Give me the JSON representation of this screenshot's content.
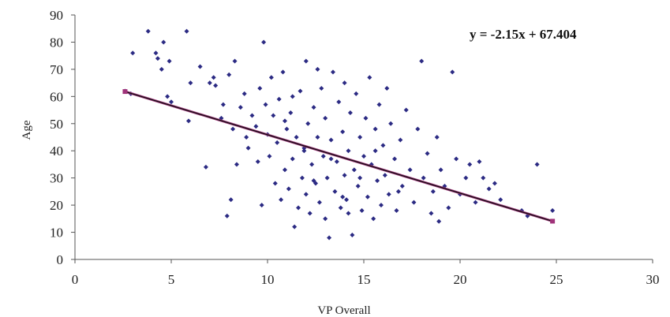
{
  "chart_data": {
    "type": "scatter",
    "xlabel": "VP Overall",
    "ylabel": "Age",
    "xlim": [
      0,
      30
    ],
    "ylim": [
      0,
      90
    ],
    "xticks": [
      0,
      5,
      10,
      15,
      20,
      25,
      30
    ],
    "yticks": [
      0,
      10,
      20,
      30,
      40,
      50,
      60,
      70,
      80,
      90
    ],
    "grid": false,
    "legend": "none",
    "annotation": "y = -2.15x + 67.404",
    "trendline": {
      "slope": -2.15,
      "intercept": 67.404,
      "x_range": [
        2.6,
        24.8
      ]
    },
    "colors": {
      "points": "#2b2a83",
      "trendline": "#101010",
      "trendline_highlight": "#a0337a",
      "axis": "#555555"
    },
    "points": [
      [
        2.6,
        62
      ],
      [
        2.9,
        61
      ],
      [
        3.0,
        76
      ],
      [
        3.8,
        84
      ],
      [
        4.2,
        76
      ],
      [
        4.3,
        74
      ],
      [
        4.5,
        70
      ],
      [
        4.6,
        80
      ],
      [
        4.8,
        60
      ],
      [
        4.9,
        73
      ],
      [
        5.0,
        58
      ],
      [
        5.8,
        84
      ],
      [
        5.9,
        51
      ],
      [
        6.0,
        65
      ],
      [
        6.5,
        71
      ],
      [
        6.8,
        34
      ],
      [
        7.0,
        65
      ],
      [
        7.2,
        67
      ],
      [
        7.3,
        64
      ],
      [
        7.6,
        52
      ],
      [
        7.7,
        57
      ],
      [
        7.9,
        16
      ],
      [
        8.0,
        68
      ],
      [
        8.1,
        22
      ],
      [
        8.2,
        48
      ],
      [
        8.3,
        73
      ],
      [
        8.4,
        35
      ],
      [
        8.6,
        56
      ],
      [
        8.8,
        61
      ],
      [
        8.9,
        45
      ],
      [
        9.0,
        41
      ],
      [
        9.2,
        53
      ],
      [
        9.4,
        49
      ],
      [
        9.6,
        63
      ],
      [
        9.7,
        20
      ],
      [
        9.8,
        80
      ],
      [
        9.9,
        57
      ],
      [
        10.0,
        46
      ],
      [
        10.1,
        38
      ],
      [
        10.2,
        67
      ],
      [
        10.3,
        53
      ],
      [
        10.4,
        28
      ],
      [
        10.5,
        43
      ],
      [
        10.6,
        59
      ],
      [
        10.7,
        22
      ],
      [
        10.8,
        69
      ],
      [
        10.9,
        33
      ],
      [
        11.0,
        48
      ],
      [
        11.1,
        26
      ],
      [
        11.2,
        54
      ],
      [
        11.3,
        37
      ],
      [
        11.4,
        12
      ],
      [
        11.5,
        45
      ],
      [
        11.6,
        19
      ],
      [
        11.7,
        62
      ],
      [
        11.8,
        30
      ],
      [
        11.9,
        41
      ],
      [
        12.0,
        73
      ],
      [
        12.0,
        24
      ],
      [
        12.1,
        50
      ],
      [
        12.2,
        17
      ],
      [
        12.3,
        35
      ],
      [
        12.4,
        56
      ],
      [
        12.5,
        28
      ],
      [
        12.6,
        45
      ],
      [
        12.7,
        21
      ],
      [
        12.8,
        63
      ],
      [
        12.9,
        38
      ],
      [
        13.0,
        15
      ],
      [
        13.0,
        52
      ],
      [
        13.1,
        30
      ],
      [
        13.2,
        8
      ],
      [
        13.3,
        44
      ],
      [
        13.4,
        69
      ],
      [
        13.5,
        25
      ],
      [
        13.6,
        36
      ],
      [
        13.7,
        58
      ],
      [
        13.8,
        19
      ],
      [
        13.9,
        47
      ],
      [
        14.0,
        31
      ],
      [
        14.0,
        65
      ],
      [
        14.1,
        22
      ],
      [
        14.2,
        40
      ],
      [
        14.3,
        54
      ],
      [
        14.4,
        9
      ],
      [
        14.5,
        33
      ],
      [
        14.6,
        61
      ],
      [
        14.7,
        27
      ],
      [
        14.8,
        45
      ],
      [
        14.9,
        18
      ],
      [
        15.0,
        38
      ],
      [
        15.1,
        52
      ],
      [
        15.2,
        23
      ],
      [
        15.3,
        67
      ],
      [
        15.4,
        35
      ],
      [
        15.5,
        15
      ],
      [
        15.6,
        48
      ],
      [
        15.7,
        29
      ],
      [
        15.8,
        57
      ],
      [
        15.9,
        20
      ],
      [
        16.0,
        42
      ],
      [
        16.1,
        31
      ],
      [
        16.2,
        63
      ],
      [
        16.3,
        24
      ],
      [
        16.4,
        50
      ],
      [
        16.6,
        37
      ],
      [
        16.7,
        18
      ],
      [
        16.9,
        44
      ],
      [
        17.0,
        27
      ],
      [
        17.2,
        55
      ],
      [
        17.4,
        33
      ],
      [
        17.6,
        21
      ],
      [
        17.8,
        48
      ],
      [
        18.0,
        73
      ],
      [
        18.1,
        30
      ],
      [
        18.3,
        39
      ],
      [
        18.5,
        17
      ],
      [
        18.6,
        25
      ],
      [
        18.8,
        45
      ],
      [
        18.9,
        14
      ],
      [
        19.0,
        33
      ],
      [
        19.2,
        27
      ],
      [
        19.4,
        19
      ],
      [
        19.6,
        69
      ],
      [
        19.8,
        37
      ],
      [
        20.0,
        24
      ],
      [
        20.3,
        30
      ],
      [
        20.5,
        35
      ],
      [
        20.8,
        21
      ],
      [
        21.0,
        36
      ],
      [
        21.2,
        30
      ],
      [
        21.5,
        26
      ],
      [
        21.8,
        28
      ],
      [
        22.1,
        22
      ],
      [
        23.2,
        18
      ],
      [
        23.5,
        16
      ],
      [
        24.0,
        35
      ],
      [
        24.8,
        18
      ],
      [
        12.6,
        70
      ],
      [
        11.9,
        40
      ],
      [
        13.3,
        37
      ],
      [
        14.8,
        30
      ],
      [
        10.9,
        51
      ],
      [
        13.9,
        23
      ],
      [
        12.4,
        29
      ],
      [
        15.6,
        40
      ],
      [
        9.5,
        36
      ],
      [
        16.8,
        25
      ],
      [
        11.3,
        60
      ],
      [
        14.2,
        17
      ]
    ]
  }
}
